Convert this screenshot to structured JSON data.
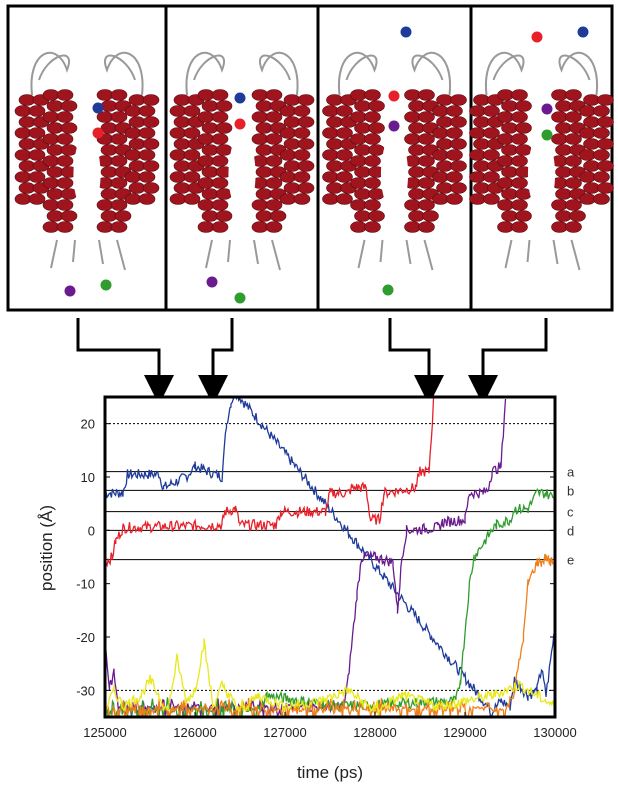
{
  "figure": {
    "snapshot_panels": [
      {
        "id": "panel-1",
        "time_ps": 125600
      },
      {
        "id": "panel-2",
        "time_ps": 126200
      },
      {
        "id": "panel-3",
        "time_ps": 128600
      },
      {
        "id": "panel-4",
        "time_ps": 129200
      }
    ],
    "ion_colors": {
      "blue": "#1f3b9a",
      "red": "#e8202a",
      "purple": "#6a1b8f",
      "green": "#2e9d2e",
      "orange": "#f07f1a",
      "yellow": "#e8e81a",
      "cyan": "#27b9d6"
    },
    "protein_color": "#a0141e"
  },
  "chart_data": {
    "type": "line",
    "xlabel": "time (ps)",
    "ylabel": "position (Å)",
    "xlim": [
      125000,
      130000
    ],
    "ylim": [
      -35,
      25
    ],
    "xticks": [
      125000,
      126000,
      127000,
      128000,
      129000,
      130000
    ],
    "xtick_labels": [
      "125000",
      "126000",
      "127000",
      "128000",
      "129000",
      "130000"
    ],
    "yticks": [
      -30,
      -20,
      -10,
      0,
      10,
      20
    ],
    "ytick_labels": [
      "-30",
      "-20",
      "-10",
      "0",
      "10",
      "20"
    ],
    "site_lines": [
      {
        "label": "a",
        "y": 11,
        "style": "solid"
      },
      {
        "label": "b",
        "y": 7.5,
        "style": "solid"
      },
      {
        "label": "c",
        "y": 3.5,
        "style": "solid"
      },
      {
        "label": "d",
        "y": 0,
        "style": "solid"
      },
      {
        "label": "e",
        "y": -5.5,
        "style": "solid"
      }
    ],
    "dashed_lines": [
      20,
      -30
    ],
    "series": [
      {
        "color": "#1f3b9a",
        "x": [
          125000,
          125200,
          125250,
          125600,
          125650,
          125900,
          126000,
          126300,
          126350,
          126400,
          126450,
          129300,
          129400,
          129500,
          129550,
          129700,
          129800,
          129850,
          129900,
          130000
        ],
        "y": [
          7,
          7,
          10.5,
          10.5,
          8,
          10,
          12,
          10,
          20,
          24,
          26,
          -34,
          -32,
          -33,
          -28,
          -31,
          -30,
          -26,
          -31,
          -18
        ]
      },
      {
        "color": "#e8202a",
        "x": [
          125000,
          125080,
          125120,
          125200,
          126300,
          126330,
          126450,
          126500,
          126900,
          126950,
          127450,
          127500,
          127700,
          127750,
          127900,
          127950,
          128050,
          128100,
          128450,
          128500,
          128600,
          128650
        ],
        "y": [
          -6,
          -5,
          -2,
          0.5,
          1,
          3.5,
          4,
          1,
          1,
          3.5,
          3.5,
          7,
          7,
          8,
          8,
          2,
          2,
          7,
          8,
          11,
          11,
          24
        ]
      },
      {
        "color": "#6a1b8f",
        "x": [
          125000,
          125050,
          125100,
          125150,
          127650,
          127700,
          127800,
          127850,
          128000,
          128200,
          128250,
          128300,
          128350,
          128700,
          128750,
          129000,
          129050,
          129200,
          129250,
          129300,
          129400,
          129450
        ],
        "y": [
          -20,
          -30,
          -26,
          -34,
          -33,
          -28,
          -12,
          -5,
          -5,
          -6,
          -15,
          -5,
          0,
          0.5,
          1.5,
          2,
          7,
          7,
          7.5,
          11,
          12,
          25
        ]
      },
      {
        "color": "#2e9d2e",
        "x": [
          125000,
          126700,
          126800,
          127600,
          128900,
          128950,
          129050,
          129100,
          129300,
          129350,
          129500,
          129550,
          129700,
          129800,
          129900,
          130000
        ],
        "y": [
          -34,
          -34,
          -31,
          -33,
          -32,
          -28,
          -10,
          -5,
          0,
          1,
          2,
          4,
          4,
          7,
          7,
          6
        ]
      },
      {
        "color": "#f07f1a",
        "x": [
          125000,
          129450,
          129550,
          129650,
          129700,
          129800,
          129850,
          129900,
          129950,
          130000
        ],
        "y": [
          -34,
          -34,
          -30,
          -20,
          -10,
          -6,
          -6,
          -5,
          -6,
          -6
        ]
      },
      {
        "color": "#e8e81a",
        "x": [
          125000,
          125100,
          125200,
          125400,
          125500,
          125700,
          125800,
          125900,
          126000,
          126100,
          126200,
          126300,
          126500,
          126700,
          127000,
          127400,
          127700,
          128000,
          128300,
          128700,
          129000,
          129300,
          129600,
          130000
        ],
        "y": [
          -34,
          -30,
          -33,
          -31,
          -28,
          -34,
          -24,
          -32,
          -30,
          -21,
          -33,
          -29,
          -34,
          -31,
          -33,
          -32,
          -30,
          -34,
          -31,
          -33,
          -32,
          -31,
          -29,
          -33
        ]
      }
    ]
  }
}
